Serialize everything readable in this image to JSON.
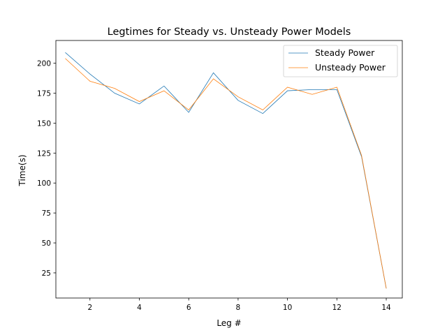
{
  "chart_data": {
    "type": "line",
    "title": "Legtimes for Steady vs. Unsteady Power Models",
    "xlabel": "Leg #",
    "ylabel": "Time(s)",
    "x": [
      1,
      2,
      3,
      4,
      5,
      6,
      7,
      8,
      9,
      10,
      11,
      12,
      13,
      14
    ],
    "xlim": [
      0.62,
      14.65
    ],
    "ylim": [
      4,
      219
    ],
    "xticks": [
      2,
      4,
      6,
      8,
      10,
      12,
      14
    ],
    "yticks": [
      25,
      50,
      75,
      100,
      125,
      150,
      175,
      200
    ],
    "grid": false,
    "legend_position": "top-right",
    "series": [
      {
        "name": "Steady Power",
        "color": "#1f77b4",
        "values": [
          209,
          191,
          175,
          166,
          181,
          159,
          192,
          169,
          158,
          177,
          178,
          178,
          122,
          12
        ]
      },
      {
        "name": "Unsteady Power",
        "color": "#ff7f0e",
        "values": [
          204,
          185,
          179,
          168,
          177,
          161,
          187,
          172,
          161,
          180,
          174,
          180,
          123,
          12
        ]
      }
    ]
  }
}
